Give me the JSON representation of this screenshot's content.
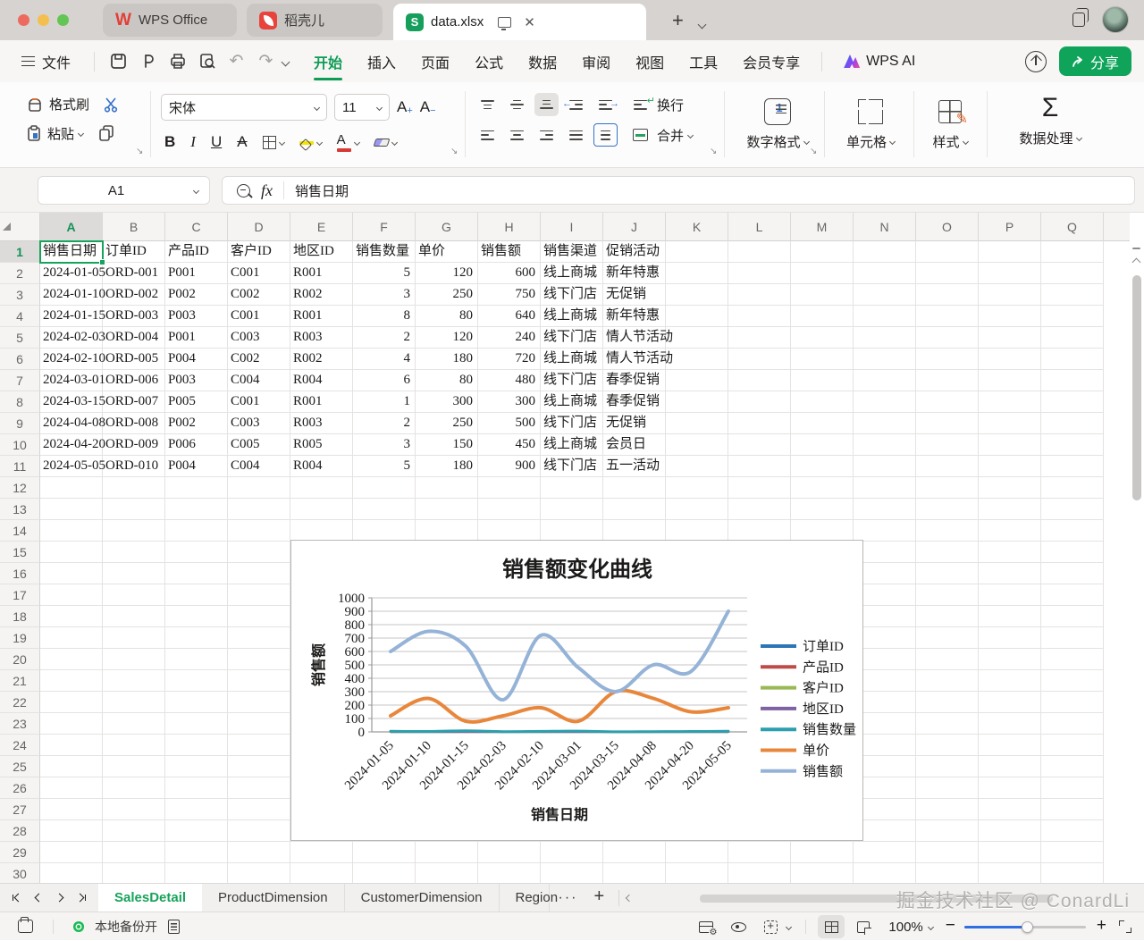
{
  "titlebar": {
    "tabs": [
      {
        "label": "WPS Office"
      },
      {
        "label": "稻壳儿"
      },
      {
        "label": "data.xlsx",
        "active": true
      }
    ]
  },
  "menubar": {
    "file": "文件",
    "items": [
      {
        "label": "开始",
        "active": true
      },
      {
        "label": "插入"
      },
      {
        "label": "页面"
      },
      {
        "label": "公式"
      },
      {
        "label": "数据"
      },
      {
        "label": "审阅"
      },
      {
        "label": "视图"
      },
      {
        "label": "工具"
      },
      {
        "label": "会员专享"
      }
    ],
    "wps_ai": "WPS AI",
    "share": "分享"
  },
  "ribbon": {
    "format_painter": "格式刷",
    "paste": "粘贴",
    "font_name": "宋体",
    "font_size": "11",
    "wrap_text": "换行",
    "merge": "合并",
    "number_format": "数字格式",
    "cells": "单元格",
    "styles": "样式",
    "data_processing": "数据处理",
    "fill_color": "#f4e402",
    "font_color": "#d63a34"
  },
  "formula_bar": {
    "name_box": "A1",
    "fx_label": "fx",
    "content": "销售日期"
  },
  "grid": {
    "columns": [
      "A",
      "B",
      "C",
      "D",
      "E",
      "F",
      "G",
      "H",
      "I",
      "J",
      "K",
      "L",
      "M",
      "N",
      "O",
      "P",
      "Q"
    ],
    "visible_rows": 30,
    "selected_cell": "A1",
    "headers": [
      "销售日期",
      "订单ID",
      "产品ID",
      "客户ID",
      "地区ID",
      "销售数量",
      "单价",
      "销售额",
      "销售渠道",
      "促销活动"
    ],
    "rows": [
      [
        "2024-01-05",
        "ORD-001",
        "P001",
        "C001",
        "R001",
        5,
        120,
        600,
        "线上商城",
        "新年特惠"
      ],
      [
        "2024-01-10",
        "ORD-002",
        "P002",
        "C002",
        "R002",
        3,
        250,
        750,
        "线下门店",
        "无促销"
      ],
      [
        "2024-01-15",
        "ORD-003",
        "P003",
        "C001",
        "R001",
        8,
        80,
        640,
        "线上商城",
        "新年特惠"
      ],
      [
        "2024-02-03",
        "ORD-004",
        "P001",
        "C003",
        "R003",
        2,
        120,
        240,
        "线下门店",
        "情人节活动"
      ],
      [
        "2024-02-10",
        "ORD-005",
        "P004",
        "C002",
        "R002",
        4,
        180,
        720,
        "线上商城",
        "情人节活动"
      ],
      [
        "2024-03-01",
        "ORD-006",
        "P003",
        "C004",
        "R004",
        6,
        80,
        480,
        "线下门店",
        "春季促销"
      ],
      [
        "2024-03-15",
        "ORD-007",
        "P005",
        "C001",
        "R001",
        1,
        300,
        300,
        "线上商城",
        "春季促销"
      ],
      [
        "2024-04-08",
        "ORD-008",
        "P002",
        "C003",
        "R003",
        2,
        250,
        500,
        "线下门店",
        "无促销"
      ],
      [
        "2024-04-20",
        "ORD-009",
        "P006",
        "C005",
        "R005",
        3,
        150,
        450,
        "线上商城",
        "会员日"
      ],
      [
        "2024-05-05",
        "ORD-010",
        "P004",
        "C004",
        "R004",
        5,
        180,
        900,
        "线下门店",
        "五一活动"
      ]
    ]
  },
  "chart_data": {
    "type": "line",
    "title": "销售额变化曲线",
    "xlabel": "销售日期",
    "ylabel": "销售额",
    "ylim": [
      0,
      1000
    ],
    "ytick_step": 100,
    "grid": true,
    "legend_position": "right",
    "categories": [
      "2024-01-05",
      "2024-01-10",
      "2024-01-15",
      "2024-02-03",
      "2024-02-10",
      "2024-03-01",
      "2024-03-15",
      "2024-04-08",
      "2024-04-20",
      "2024-05-05"
    ],
    "series": [
      {
        "name": "订单ID",
        "color": "#2e75b6",
        "values": [
          0,
          0,
          0,
          0,
          0,
          0,
          0,
          0,
          0,
          0
        ]
      },
      {
        "name": "产品ID",
        "color": "#be4b48",
        "values": [
          0,
          0,
          0,
          0,
          0,
          0,
          0,
          0,
          0,
          0
        ]
      },
      {
        "name": "客户ID",
        "color": "#98b954",
        "values": [
          0,
          0,
          0,
          0,
          0,
          0,
          0,
          0,
          0,
          0
        ]
      },
      {
        "name": "地区ID",
        "color": "#7e62a1",
        "values": [
          0,
          0,
          0,
          0,
          0,
          0,
          0,
          0,
          0,
          0
        ]
      },
      {
        "name": "销售数量",
        "color": "#2b9fad",
        "values": [
          5,
          3,
          8,
          2,
          4,
          6,
          1,
          2,
          3,
          5
        ]
      },
      {
        "name": "单价",
        "color": "#e8873b",
        "values": [
          120,
          250,
          80,
          120,
          180,
          80,
          300,
          250,
          150,
          180
        ]
      },
      {
        "name": "销售额",
        "color": "#95b3d7",
        "values": [
          600,
          750,
          640,
          240,
          720,
          480,
          300,
          500,
          450,
          900
        ]
      }
    ]
  },
  "sheet_bar": {
    "tabs": [
      {
        "label": "SalesDetail",
        "active": true
      },
      {
        "label": "ProductDimension"
      },
      {
        "label": "CustomerDimension"
      },
      {
        "label": "Region",
        "clipped": true
      }
    ]
  },
  "status_bar": {
    "backup_label": "本地备份开",
    "zoom_level": "100%"
  },
  "watermark": "掘金技术社区 @ ConardLi",
  "colors": {
    "accent_green": "#17a35b",
    "share_button": "#10a45b"
  }
}
